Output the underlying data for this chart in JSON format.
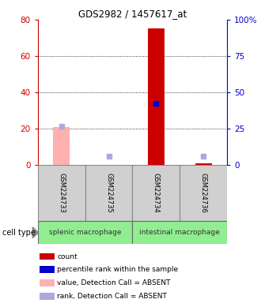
{
  "title": "GDS2982 / 1457617_at",
  "samples": [
    "GSM224733",
    "GSM224735",
    "GSM224734",
    "GSM224736"
  ],
  "groups": [
    {
      "name": "splenic macrophage",
      "samples": [
        0,
        1
      ],
      "color": "#90EE90"
    },
    {
      "name": "intestinal macrophage",
      "samples": [
        2,
        3
      ],
      "color": "#90EE90"
    }
  ],
  "count_values": [
    null,
    null,
    75.0,
    1.0
  ],
  "count_absent": [
    21.0,
    null,
    null,
    null
  ],
  "percentile_values": [
    null,
    null,
    42.5,
    null
  ],
  "percentile_absent": [
    27.0,
    6.0,
    null,
    6.0
  ],
  "ylim_left": [
    0,
    80
  ],
  "ylim_right": [
    0,
    100
  ],
  "left_ticks": [
    0,
    20,
    40,
    60,
    80
  ],
  "right_ticks": [
    0,
    25,
    50,
    75,
    100
  ],
  "left_color": "#cc0000",
  "right_color": "#0000cc",
  "bar_color_count": "#cc0000",
  "bar_color_absent": "#ffb0b0",
  "dot_color_present": "#0000cc",
  "dot_color_absent": "#aaaadd",
  "grid_yticks": [
    20,
    40,
    60
  ],
  "bar_width": 0.35,
  "dot_size": 4,
  "legend_items": [
    {
      "color": "#cc0000",
      "label": "count"
    },
    {
      "color": "#0000cc",
      "label": "percentile rank within the sample"
    },
    {
      "color": "#ffb0b0",
      "label": "value, Detection Call = ABSENT"
    },
    {
      "color": "#aaaadd",
      "label": "rank, Detection Call = ABSENT"
    }
  ]
}
